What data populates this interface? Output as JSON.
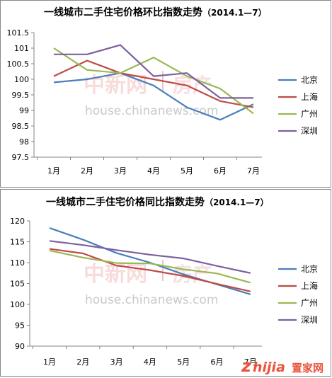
{
  "watermark": {
    "cn_left": "中新网",
    "cn_right": "房产",
    "url": "house.chinanews.com"
  },
  "brand": {
    "zhijia_z": "z",
    "zhijia_rest": "hijia",
    "cn": "置家网"
  },
  "colors": {
    "beijing": "#4a7ebb",
    "shanghai": "#be4b48",
    "guangzhou": "#98b954",
    "shenzhen": "#7d60a0"
  },
  "chart_data": [
    {
      "type": "line",
      "title": "一线城市二手住宅价格环比指数走势",
      "title_suffix": "（2014.1—7）",
      "categories": [
        "1月",
        "2月",
        "3月",
        "4月",
        "5月",
        "6月",
        "7月"
      ],
      "ylim": [
        97.5,
        101.5
      ],
      "yticks": [
        "101.5",
        "101",
        "100.5",
        "100",
        "99.5",
        "99",
        "98.5",
        "98",
        "97.5"
      ],
      "legend_position": "right",
      "grid": false,
      "series": [
        {
          "name": "北京",
          "color": "#4a7ebb",
          "values": [
            99.9,
            100.0,
            100.2,
            99.8,
            99.1,
            98.7,
            99.2
          ]
        },
        {
          "name": "上海",
          "color": "#be4b48",
          "values": [
            100.1,
            100.6,
            100.2,
            100.0,
            99.8,
            99.3,
            99.1
          ]
        },
        {
          "name": "广州",
          "color": "#98b954",
          "values": [
            101.0,
            100.3,
            100.2,
            100.7,
            100.1,
            99.7,
            98.9
          ]
        },
        {
          "name": "深圳",
          "color": "#7d60a0",
          "values": [
            100.8,
            100.8,
            101.1,
            100.1,
            100.2,
            99.4,
            99.4
          ]
        }
      ]
    },
    {
      "type": "line",
      "title": "一线城市二手住宅价格同比指数走势",
      "title_suffix": "（2014.1—7）",
      "categories": [
        "1月",
        "2月",
        "3月",
        "4月",
        "5月",
        "6月",
        "7月"
      ],
      "ylim": [
        90,
        120
      ],
      "yticks": [
        "120",
        "115",
        "110",
        "105",
        "100",
        "95",
        "90"
      ],
      "legend_position": "right",
      "grid": false,
      "series": [
        {
          "name": "北京",
          "color": "#4a7ebb",
          "values": [
            118.3,
            115.5,
            112.3,
            110.0,
            107.2,
            104.8,
            102.4
          ]
        },
        {
          "name": "上海",
          "color": "#be4b48",
          "values": [
            113.3,
            112.2,
            109.3,
            108.2,
            106.8,
            104.9,
            103.1
          ]
        },
        {
          "name": "广州",
          "color": "#98b954",
          "values": [
            112.9,
            111.2,
            109.9,
            109.8,
            108.4,
            107.4,
            105.2
          ]
        },
        {
          "name": "深圳",
          "color": "#7d60a0",
          "values": [
            115.2,
            114.2,
            113.0,
            111.9,
            111.0,
            109.2,
            107.5
          ]
        }
      ]
    }
  ]
}
